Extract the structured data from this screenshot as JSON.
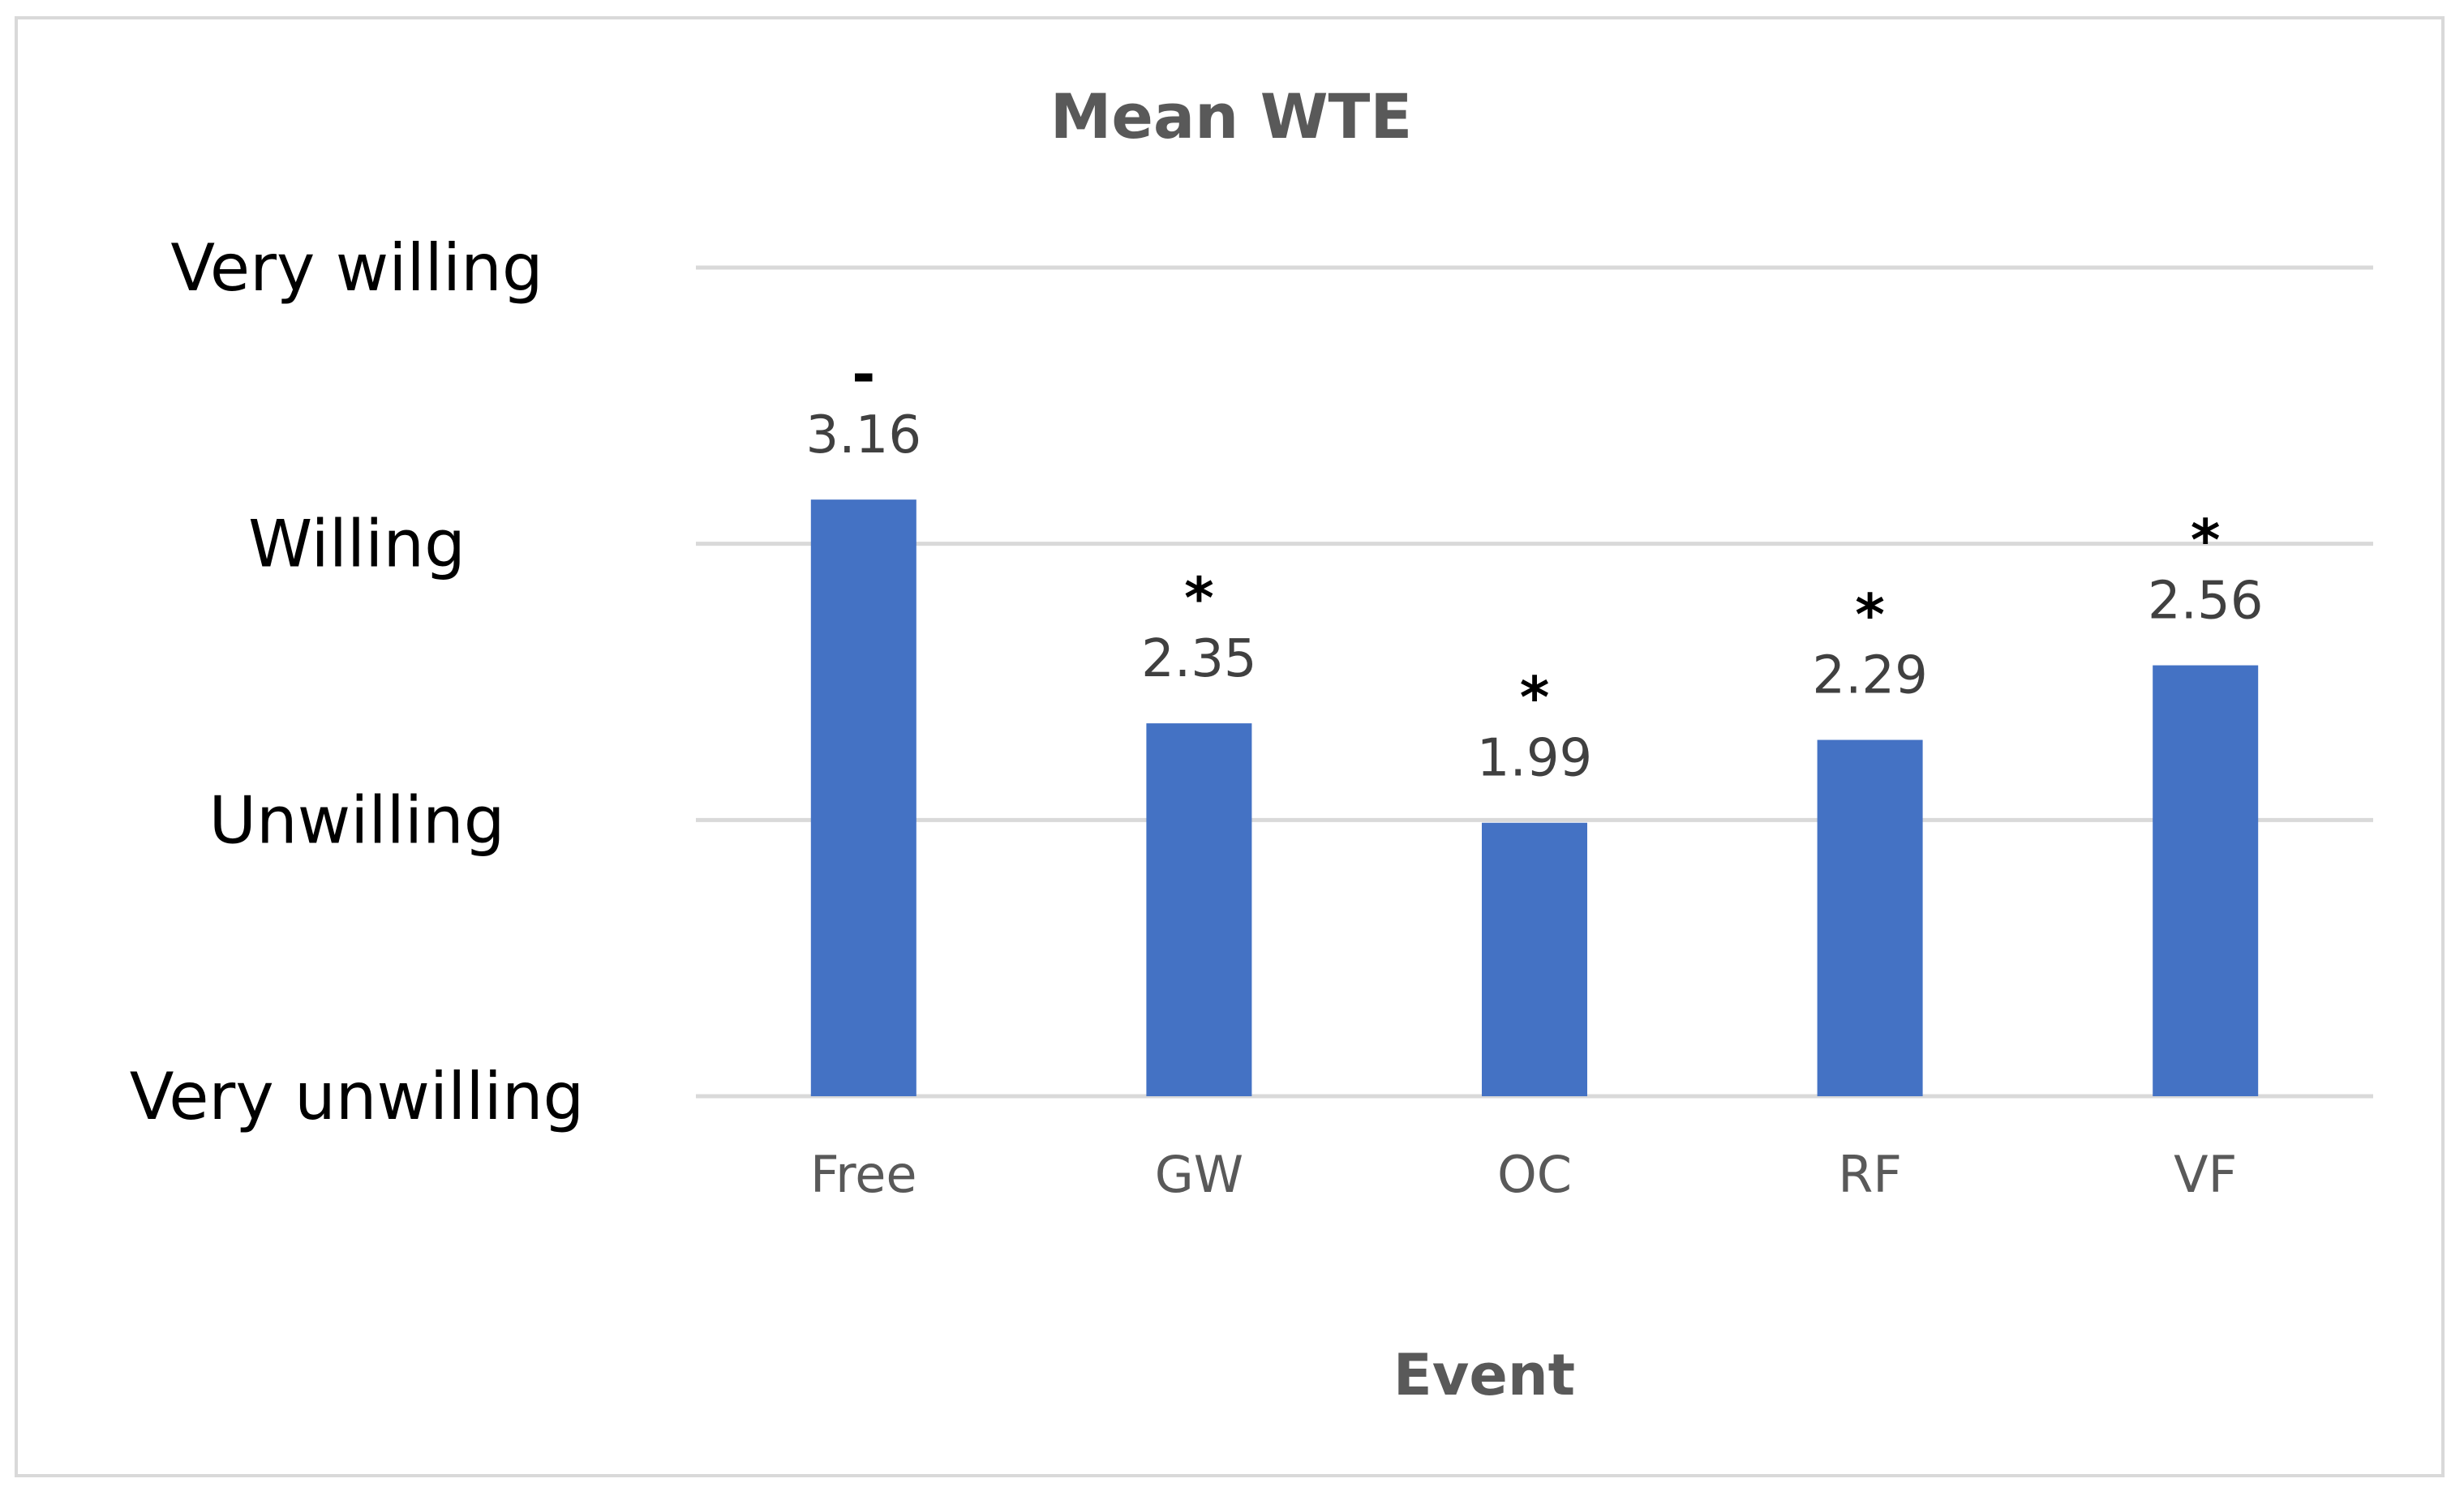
{
  "chart_data": {
    "type": "bar",
    "title": "Mean WTE",
    "xlabel": "Event",
    "ylabel": "",
    "categories": [
      "Free",
      "GW",
      "OC",
      "RF",
      "VF"
    ],
    "values": [
      3.16,
      2.35,
      1.99,
      2.29,
      2.56
    ],
    "value_labels": [
      "3.16",
      "2.35",
      "1.99",
      "2.29",
      "2.56"
    ],
    "significance_markers": [
      "-",
      "*",
      "*",
      "*",
      "*"
    ],
    "ylim": [
      1,
      4
    ],
    "yticks": [
      1,
      2,
      3,
      4
    ],
    "ytick_labels": [
      "Very unwilling",
      "Unwilling",
      "Willing",
      "Very willing"
    ],
    "grid": true,
    "legend": "none",
    "colors": {
      "bar": "#4472c4",
      "grid": "#d9d9d9",
      "frame": "#d9d9d9"
    }
  }
}
